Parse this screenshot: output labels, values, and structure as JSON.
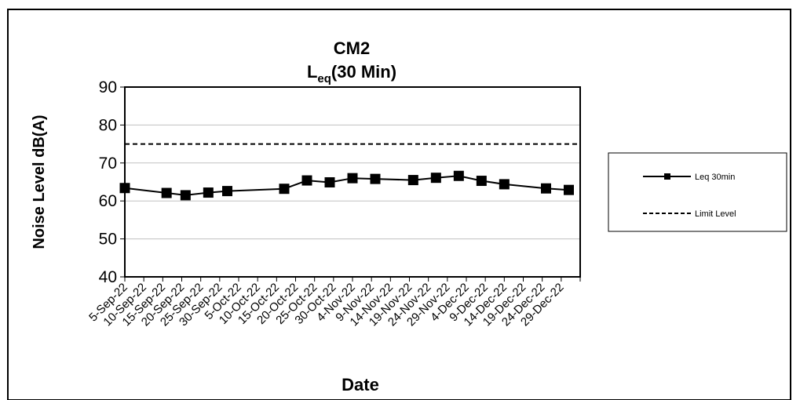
{
  "chart_data": {
    "type": "line",
    "title": "CM2",
    "subtitle_main": "L",
    "subtitle_sub": "eq",
    "subtitle_rest": "(30 Min)",
    "xlabel": "Date",
    "ylabel": "Noise Level dB(A)",
    "ylim": [
      40,
      90
    ],
    "y_ticks": [
      40,
      50,
      60,
      70,
      80,
      90
    ],
    "grid": "horizontal",
    "legend_position": "right",
    "x_tick_labels": [
      "5-Sep-22",
      "10-Sep-22",
      "15-Sep-22",
      "20-Sep-22",
      "25-Sep-22",
      "30-Sep-22",
      "5-Oct-22",
      "10-Oct-22",
      "15-Oct-22",
      "20-Oct-22",
      "25-Oct-22",
      "30-Oct-22",
      "4-Nov-22",
      "9-Nov-22",
      "14-Nov-22",
      "19-Nov-22",
      "24-Nov-22",
      "29-Nov-22",
      "4-Dec-22",
      "9-Dec-22",
      "14-Dec-22",
      "19-Dec-22",
      "24-Dec-22",
      "29-Dec-22"
    ],
    "x_range": [
      "2022-09-05",
      "2023-01-03"
    ],
    "series": [
      {
        "name": "Leq 30min",
        "color": "#000000",
        "style": "solid",
        "marker": "square",
        "points": [
          {
            "x": "2022-09-05",
            "y": 63.4
          },
          {
            "x": "2022-09-16",
            "y": 62.1
          },
          {
            "x": "2022-09-21",
            "y": 61.5
          },
          {
            "x": "2022-09-27",
            "y": 62.2
          },
          {
            "x": "2022-10-02",
            "y": 62.6
          },
          {
            "x": "2022-10-17",
            "y": 63.2
          },
          {
            "x": "2022-10-23",
            "y": 65.4
          },
          {
            "x": "2022-10-29",
            "y": 64.9
          },
          {
            "x": "2022-11-04",
            "y": 66.0
          },
          {
            "x": "2022-11-10",
            "y": 65.8
          },
          {
            "x": "2022-11-20",
            "y": 65.5
          },
          {
            "x": "2022-11-26",
            "y": 66.1
          },
          {
            "x": "2022-12-02",
            "y": 66.6
          },
          {
            "x": "2022-12-08",
            "y": 65.3
          },
          {
            "x": "2022-12-14",
            "y": 64.4
          },
          {
            "x": "2022-12-25",
            "y": 63.3
          },
          {
            "x": "2022-12-31",
            "y": 62.9
          }
        ]
      },
      {
        "name": "Limit Level",
        "color": "#000000",
        "style": "dashed",
        "constant_y": 75
      }
    ]
  }
}
